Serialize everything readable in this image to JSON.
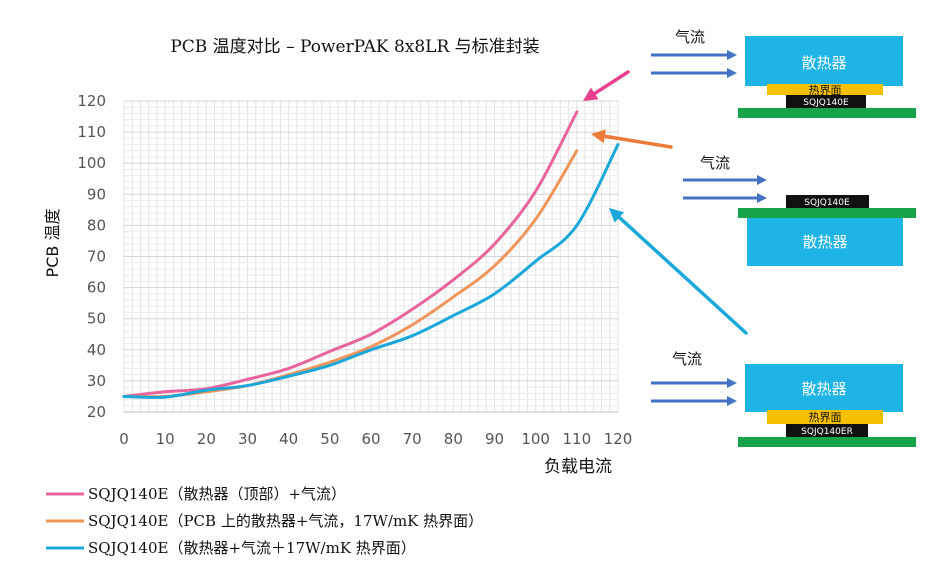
{
  "chart_data": {
    "type": "line",
    "title": "PCB 温度对比 – PowerPAK 8x8LR 与标准封装",
    "xlabel": "负载电流",
    "ylabel": "PCB 温度",
    "xlim": [
      0,
      120
    ],
    "ylim": [
      20,
      120
    ],
    "x_ticks": [
      0,
      10,
      20,
      30,
      40,
      50,
      60,
      70,
      80,
      90,
      100,
      110,
      120
    ],
    "y_ticks": [
      20,
      30,
      40,
      50,
      60,
      70,
      80,
      90,
      100,
      110,
      120
    ],
    "grid": true,
    "legend_position": "bottom-left",
    "series": [
      {
        "name": "SQJQ140E（散热器（顶部）+气流）",
        "color": "#e8649c",
        "points": [
          [
            0,
            25
          ],
          [
            10,
            26.5
          ],
          [
            20,
            27.5
          ],
          [
            30,
            30.5
          ],
          [
            40,
            34
          ],
          [
            50,
            39.5
          ],
          [
            60,
            45
          ],
          [
            70,
            53
          ],
          [
            80,
            62.5
          ],
          [
            90,
            74
          ],
          [
            100,
            91
          ],
          [
            110,
            116.5
          ]
        ]
      },
      {
        "name": "SQJQ140E（PCB 上的散热器+气流，17W/mK 热界面）",
        "color": "#f0955a",
        "points": [
          [
            0,
            25
          ],
          [
            10,
            25
          ],
          [
            20,
            26.5
          ],
          [
            30,
            28.5
          ],
          [
            40,
            32
          ],
          [
            50,
            36
          ],
          [
            60,
            41
          ],
          [
            70,
            48
          ],
          [
            80,
            57
          ],
          [
            90,
            67
          ],
          [
            100,
            82
          ],
          [
            110,
            104
          ]
        ]
      },
      {
        "name": "SQJQ140E（散热器+气流＋17W/mK 热界面）",
        "color": "#1aa7da",
        "points": [
          [
            0,
            25
          ],
          [
            10,
            24.8
          ],
          [
            20,
            27
          ],
          [
            30,
            28.5
          ],
          [
            40,
            31.5
          ],
          [
            50,
            35
          ],
          [
            60,
            40
          ],
          [
            70,
            44.5
          ],
          [
            80,
            51
          ],
          [
            90,
            58
          ],
          [
            100,
            68.5
          ],
          [
            110,
            80
          ],
          [
            120,
            106
          ]
        ]
      }
    ]
  },
  "diagrams": {
    "airflow_label": "气流",
    "heatsink_label": "散热器",
    "tim_label": "热界面",
    "configs": [
      {
        "chip_label": "SQJQ140E",
        "arrow_color": "#e8408e"
      },
      {
        "chip_label": "SQJQ140E",
        "arrow_color": "#ec7b3a"
      },
      {
        "chip_label": "SQJQ140ER",
        "arrow_color": "#1aa7da"
      }
    ],
    "colors": {
      "heatsink": "#1fb4e6",
      "pcb": "#16a34a",
      "tim": "#f5c000",
      "chip": "#111111",
      "airflow_arrow": "#4472c4"
    }
  }
}
